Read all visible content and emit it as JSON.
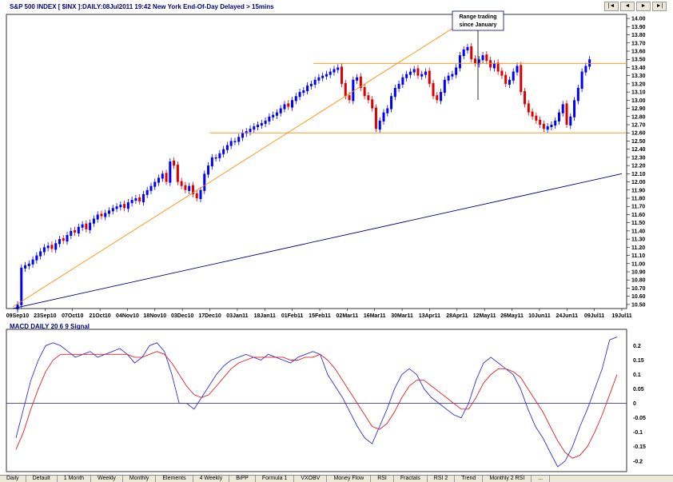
{
  "header": {
    "title": "S&P 500 INDEX [ $INX ]:DAILY:08Jul2011 19:42 New York End-Of-Day Delayed > 15mins",
    "macd_title": "MACD DAILY 20 6 9 Signal"
  },
  "nav_buttons": [
    "|◄",
    "◄",
    "►",
    "►|"
  ],
  "annotation": {
    "line1": "Range trading",
    "line2": "since January"
  },
  "tabs": [
    "Daily",
    "Default",
    "1 Month",
    "Weekly",
    "Monthly",
    "Elements",
    "4 Weekly",
    "BiPP",
    "Formula 1",
    "VXOBV",
    "Money Flow",
    "RSI",
    "Fractals",
    "RSI 2",
    "Trend",
    "Monthly 2 RSI",
    "..."
  ],
  "colors": {
    "up": "#0000ff",
    "down": "#e00000",
    "trend_orange": "#ff8c00",
    "trend_navy": "#000080",
    "macd": "#3030e0",
    "signal": "#e02020"
  },
  "chart_data": [
    {
      "type": "candlestick",
      "title": "S&P 500 INDEX [ $INX ]:DAILY",
      "ylim": [
        10.45,
        14.05
      ],
      "yticks": [
        "10.50",
        "10.60",
        "10.70",
        "10.80",
        "10.90",
        "11.00",
        "11.10",
        "11.20",
        "11.30",
        "11.40",
        "11.50",
        "11.60",
        "11.70",
        "11.80",
        "11.90",
        "12.00",
        "12.10",
        "12.20",
        "12.30",
        "12.40",
        "12.50",
        "12.60",
        "12.70",
        "12.80",
        "12.90",
        "13.00",
        "13.10",
        "13.20",
        "13.30",
        "13.40",
        "13.50",
        "13.60",
        "13.70",
        "13.80",
        "13.90",
        "14.00"
      ],
      "xticks": [
        "09Sep10",
        "23Sep10",
        "07Oct10",
        "21Oct10",
        "04Nov10",
        "18Nov10",
        "03Dec10",
        "17Dec10",
        "03Jan11",
        "18Jan11",
        "01Feb11",
        "15Feb11",
        "02Mar11",
        "16Mar11",
        "30Mar11",
        "13Apr11",
        "28Apr11",
        "12May11",
        "26May11",
        "10Jun11",
        "24Jun11",
        "09Jul11",
        "19Jul11"
      ],
      "closes": [
        10.5,
        10.95,
        10.98,
        11.0,
        11.05,
        11.1,
        11.15,
        11.2,
        11.22,
        11.18,
        11.25,
        11.3,
        11.28,
        11.35,
        11.4,
        11.38,
        11.45,
        11.48,
        11.42,
        11.5,
        11.55,
        11.6,
        11.58,
        11.62,
        11.65,
        11.68,
        11.7,
        11.72,
        11.68,
        11.75,
        11.78,
        11.8,
        11.76,
        11.85,
        11.9,
        11.95,
        12.0,
        12.05,
        12.1,
        12.0,
        12.25,
        12.2,
        12.0,
        11.95,
        11.9,
        11.95,
        11.85,
        11.8,
        11.9,
        12.1,
        12.2,
        12.3,
        12.3,
        12.35,
        12.4,
        12.45,
        12.5,
        12.5,
        12.55,
        12.6,
        12.62,
        12.65,
        12.68,
        12.7,
        12.72,
        12.75,
        12.8,
        12.82,
        12.85,
        12.9,
        12.95,
        12.92,
        13.0,
        13.05,
        13.1,
        13.12,
        13.18,
        13.2,
        13.25,
        13.28,
        13.3,
        13.32,
        13.35,
        13.38,
        13.4,
        13.2,
        13.05,
        13.0,
        13.25,
        13.28,
        13.15,
        13.05,
        13.0,
        12.9,
        12.65,
        12.75,
        12.85,
        12.9,
        13.05,
        13.15,
        13.2,
        13.28,
        13.32,
        13.35,
        13.38,
        13.3,
        13.32,
        13.35,
        13.2,
        13.05,
        13.0,
        13.1,
        13.25,
        13.3,
        13.32,
        13.4,
        13.55,
        13.62,
        13.65,
        13.5,
        13.45,
        13.5,
        13.55,
        13.48,
        13.4,
        13.45,
        13.35,
        13.3,
        13.2,
        13.25,
        13.35,
        13.42,
        13.1,
        12.95,
        12.85,
        12.8,
        12.75,
        12.7,
        12.65,
        12.68,
        12.7,
        12.75,
        12.85,
        12.95,
        12.7,
        12.8,
        13.0,
        13.15,
        13.35,
        13.42,
        13.5
      ],
      "trendlines": [
        {
          "name": "rising-support-orange",
          "points": [
            [
              "09Sep10",
              10.47
            ],
            [
              "03May11",
              14.05
            ]
          ]
        },
        {
          "name": "long-term-navy",
          "points": [
            [
              "09Sep10",
              10.45
            ],
            [
              "19Jul11",
              12.1
            ]
          ]
        },
        {
          "name": "range-top",
          "value": 13.45
        },
        {
          "name": "range-bottom",
          "value": 12.6
        }
      ]
    },
    {
      "type": "line",
      "title": "MACD DAILY 20 6 9 Signal",
      "ylim": [
        -0.22,
        0.24
      ],
      "yticks": [
        "0.2",
        "0.15",
        "0.1",
        "0.05",
        "0",
        "-0.05",
        "-0.1",
        "-0.15",
        "-0.2"
      ],
      "series": [
        {
          "values": [
            -0.12,
            -0.02,
            0.08,
            0.15,
            0.2,
            0.21,
            0.2,
            0.18,
            0.16,
            0.17,
            0.18,
            0.16,
            0.17,
            0.18,
            0.19,
            0.17,
            0.14,
            0.16,
            0.2,
            0.21,
            0.18,
            0.1,
            0.0,
            0.0,
            -0.02,
            0.02,
            0.06,
            0.1,
            0.13,
            0.15,
            0.16,
            0.17,
            0.16,
            0.15,
            0.17,
            0.16,
            0.15,
            0.14,
            0.16,
            0.17,
            0.18,
            0.17,
            0.1,
            0.06,
            0.02,
            -0.03,
            -0.08,
            -0.12,
            -0.14,
            -0.08,
            -0.02,
            0.05,
            0.1,
            0.12,
            0.1,
            0.05,
            0.02,
            0.0,
            -0.02,
            -0.04,
            -0.05,
            0.0,
            0.08,
            0.14,
            0.16,
            0.14,
            0.12,
            0.1,
            0.05,
            -0.02,
            -0.08,
            -0.12,
            -0.17,
            -0.22,
            -0.2,
            -0.15,
            -0.08,
            -0.02,
            0.05,
            0.12,
            0.22,
            0.23
          ]
        },
        {
          "values": [
            -0.16,
            -0.1,
            -0.02,
            0.05,
            0.11,
            0.15,
            0.17,
            0.17,
            0.17,
            0.17,
            0.17,
            0.17,
            0.17,
            0.17,
            0.17,
            0.17,
            0.16,
            0.16,
            0.17,
            0.18,
            0.17,
            0.14,
            0.1,
            0.06,
            0.03,
            0.02,
            0.03,
            0.06,
            0.09,
            0.12,
            0.14,
            0.15,
            0.16,
            0.16,
            0.16,
            0.16,
            0.16,
            0.15,
            0.15,
            0.16,
            0.16,
            0.17,
            0.15,
            0.12,
            0.08,
            0.04,
            0.0,
            -0.04,
            -0.08,
            -0.09,
            -0.07,
            -0.03,
            0.02,
            0.06,
            0.08,
            0.08,
            0.06,
            0.04,
            0.02,
            0.0,
            -0.02,
            -0.02,
            0.02,
            0.07,
            0.1,
            0.12,
            0.12,
            0.11,
            0.09,
            0.05,
            0.01,
            -0.03,
            -0.08,
            -0.13,
            -0.17,
            -0.19,
            -0.18,
            -0.15,
            -0.1,
            -0.04,
            0.03,
            0.1
          ]
        }
      ]
    }
  ]
}
